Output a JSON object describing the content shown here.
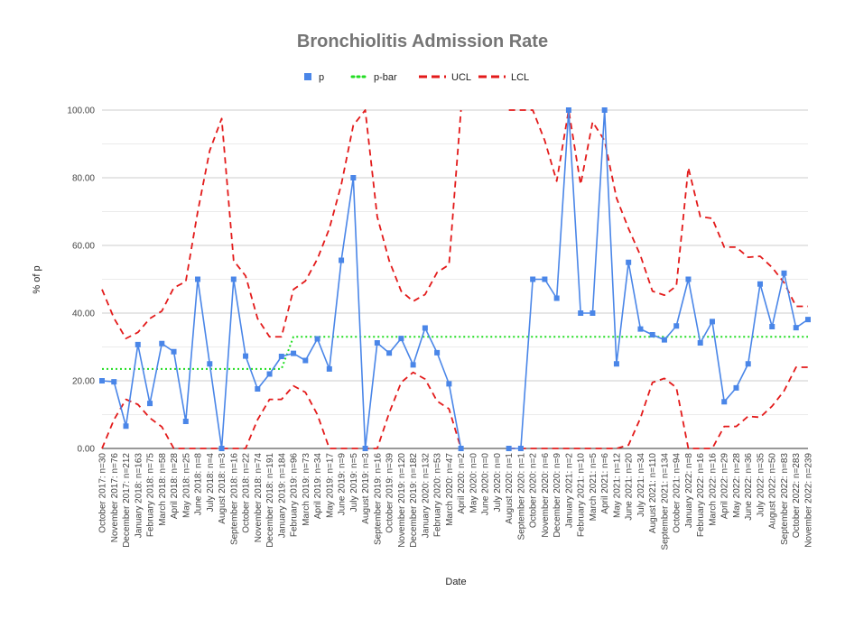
{
  "chart_data": {
    "type": "line",
    "title": "Bronchiolitis Admission Rate",
    "xlabel": "Date",
    "ylabel": "% of p",
    "ylim": [
      0,
      100
    ],
    "yticks": [
      "0.00",
      "20.00",
      "40.00",
      "60.00",
      "80.00",
      "100.00"
    ],
    "grid": true,
    "legend_position": "top",
    "categories": [
      "October 2017: n=30",
      "November 2017: n=76",
      "December 2017: n=212",
      "January 2018: n=163",
      "February 2018: n=75",
      "March 2018: n=58",
      "April 2018: n=28",
      "May 2018: n=25",
      "June 2018: n=8",
      "July 2018: n=4",
      "August 2018: n=3",
      "September 2018: n=16",
      "October 2018: n=22",
      "November 2018: n=74",
      "December 2018: n=191",
      "January 2019: n=184",
      "February 2019: n=96",
      "March 2019: n=73",
      "April 2019: n=34",
      "May 2019: n=17",
      "June 2019: n=9",
      "July 2019: n=5",
      "August 2019: n=3",
      "September 2019: n=16",
      "October 2019: n=39",
      "November 2019: n=120",
      "December 2019: n=182",
      "January 2020: n=132",
      "February 2020: n=53",
      "March 2020: n=47",
      "April 2020: n=2",
      "May 2020: n=0",
      "June 2020: n=0",
      "July 2020: n=0",
      "August 2020: n=1",
      "September 2020: n=1",
      "October 2020: n=2",
      "November 2020: n=6",
      "December 2020: n=9",
      "January 2021: n=2",
      "February 2021: n=10",
      "March 2021: n=5",
      "April 2021: n=6",
      "May 2021: n=12",
      "June 2021: n=20",
      "July 2021: n=34",
      "August 2021: n=110",
      "September 2021: n=134",
      "October 2021: n=94",
      "January 2022: n=8",
      "February 2022: n=16",
      "March 2022: n=16",
      "April 2022: n=29",
      "May 2022: n=28",
      "June 2022: n=36",
      "July 2022: n=35",
      "August 2022: n=50",
      "September 2022: n=83",
      "October 2022: n=283",
      "November 2022: n=239"
    ],
    "series": [
      {
        "name": "p",
        "color": "#4a86e8",
        "style": "line-with-square-markers",
        "values": [
          20,
          19.7,
          6.6,
          30.7,
          13.3,
          31,
          28.6,
          8,
          50,
          25,
          0,
          50,
          27.3,
          17.6,
          22,
          27.2,
          28.1,
          26,
          32.4,
          23.5,
          55.6,
          80,
          0,
          31.2,
          28.2,
          32.5,
          24.7,
          35.6,
          28.3,
          19.1,
          0,
          null,
          null,
          null,
          0,
          0,
          50,
          50,
          44.4,
          100,
          40,
          40,
          100,
          25,
          55,
          35.3,
          33.6,
          32.1,
          36.2,
          50,
          31.2,
          37.5,
          13.8,
          17.9,
          25,
          48.6,
          36,
          51.8,
          35.7,
          38.1
        ]
      },
      {
        "name": "p-bar",
        "color": "#22dd22",
        "style": "dotted",
        "values": [
          23.5,
          23.5,
          23.5,
          23.5,
          23.5,
          23.5,
          23.5,
          23.5,
          23.5,
          23.5,
          23.5,
          23.5,
          23.5,
          23.5,
          23.5,
          23.5,
          33,
          33,
          33,
          33,
          33,
          33,
          33,
          33,
          33,
          33,
          33,
          33,
          33,
          33,
          33,
          33,
          33,
          33,
          33,
          33,
          33,
          33,
          33,
          33,
          33,
          33,
          33,
          33,
          33,
          33,
          33,
          33,
          33,
          33,
          33,
          33,
          33,
          33,
          33,
          33,
          33,
          33,
          33,
          33
        ]
      },
      {
        "name": "UCL",
        "color": "#e31a1a",
        "style": "dashed",
        "values": [
          47,
          38.5,
          32.5,
          34.3,
          38.4,
          40.6,
          47.5,
          49.3,
          70,
          88,
          97.5,
          55.5,
          51,
          38.4,
          33,
          33,
          47,
          49.5,
          56,
          65,
          78,
          95.5,
          100,
          68.5,
          55.5,
          46.5,
          43.5,
          45.5,
          52,
          54.3,
          100,
          null,
          null,
          null,
          100,
          100,
          100,
          91,
          79,
          100,
          78,
          96.5,
          91,
          74,
          65,
          57,
          46.5,
          45.3,
          48,
          83,
          68.5,
          68,
          59.5,
          59.5,
          56.5,
          56.8,
          53.5,
          49,
          42,
          42
        ]
      },
      {
        "name": "LCL",
        "color": "#e31a1a",
        "style": "dashed",
        "values": [
          0,
          8.5,
          14.5,
          13,
          9,
          6.4,
          0,
          0,
          0,
          0,
          0,
          0,
          0,
          8.5,
          14.5,
          14.5,
          18.5,
          16.6,
          10,
          0,
          0,
          0,
          0,
          0,
          10.5,
          19.5,
          22.5,
          20.5,
          14,
          11.7,
          0,
          null,
          null,
          null,
          0,
          0,
          0,
          0,
          0,
          0,
          0,
          0,
          0,
          0,
          1,
          9,
          19.5,
          20.7,
          18,
          0,
          0,
          0,
          6.5,
          6.5,
          9.5,
          9.2,
          12.5,
          17,
          24,
          24
        ]
      }
    ]
  }
}
